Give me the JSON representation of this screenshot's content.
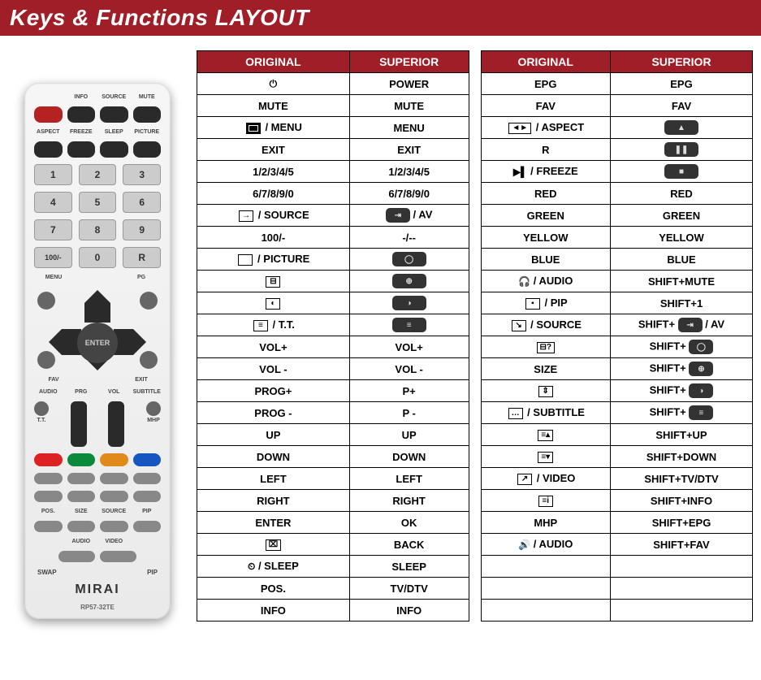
{
  "colors": {
    "accent": "#a01e27",
    "border": "#000000",
    "dark_button": "#333333"
  },
  "header": {
    "title": "Keys & Functions LAYOUT"
  },
  "remote": {
    "brand": "MIRAI",
    "model": "RP57-32TE",
    "top_labels": [
      "",
      "INFO",
      "SOURCE",
      "MUTE"
    ],
    "row2_labels": [
      "ASPECT",
      "FREEZE",
      "SLEEP",
      "PICTURE"
    ],
    "numbers": [
      "1",
      "2",
      "3",
      "4",
      "5",
      "6",
      "7",
      "8",
      "9",
      "100/-",
      "0",
      "R"
    ],
    "menu_label": "MENU",
    "pg_label": "PG",
    "enter_label": "ENTER",
    "fav_label": "FAV",
    "exit_label": "EXIT",
    "rocker_labels": [
      "AUDIO",
      "PRG",
      "VOL",
      "SUBTITLE"
    ],
    "rocker_sub": [
      "T.T.",
      "",
      "",
      "MHP"
    ],
    "bottom1": [
      "POS.",
      "SIZE",
      "SOURCE",
      "PIP"
    ],
    "bottom2": [
      "AUDIO",
      "VIDEO"
    ],
    "swap": "SWAP",
    "pip_section": "PIP"
  },
  "table1": {
    "headers": [
      "ORIGINAL",
      "SUPERIOR"
    ],
    "rows": [
      {
        "o": {
          "type": "sym",
          "text": "⏻"
        },
        "s": {
          "type": "text",
          "text": "POWER"
        }
      },
      {
        "o": {
          "type": "text",
          "text": "MUTE"
        },
        "s": {
          "type": "text",
          "text": "MUTE"
        }
      },
      {
        "o": {
          "type": "icon-text",
          "icon": "black-sq",
          "text": " / MENU"
        },
        "s": {
          "type": "text",
          "text": "MENU"
        }
      },
      {
        "o": {
          "type": "text",
          "text": "EXIT"
        },
        "s": {
          "type": "text",
          "text": "EXIT"
        }
      },
      {
        "o": {
          "type": "text",
          "text": "1/2/3/4/5"
        },
        "s": {
          "type": "text",
          "text": "1/2/3/4/5"
        }
      },
      {
        "o": {
          "type": "text",
          "text": "6/7/8/9/0"
        },
        "s": {
          "type": "text",
          "text": "6/7/8/9/0"
        }
      },
      {
        "o": {
          "type": "icon-text",
          "icon": "source",
          "text": " / SOURCE"
        },
        "s": {
          "type": "dark-text",
          "inner": "⇥",
          "text": " / AV"
        }
      },
      {
        "o": {
          "type": "text",
          "text": "100/-"
        },
        "s": {
          "type": "text",
          "text": "-/--"
        }
      },
      {
        "o": {
          "type": "icon-text",
          "icon": "blank",
          "text": " / PICTURE"
        },
        "s": {
          "type": "dark",
          "inner": "◯"
        }
      },
      {
        "o": {
          "type": "icon",
          "sym": "⊟"
        },
        "s": {
          "type": "dark",
          "inner": "⊕"
        }
      },
      {
        "o": {
          "type": "icon",
          "sym": "◐"
        },
        "s": {
          "type": "dark",
          "inner": "◑"
        }
      },
      {
        "o": {
          "type": "icon-text",
          "icon": "tt",
          "text": " / T.T."
        },
        "s": {
          "type": "dark",
          "inner": "≡"
        }
      },
      {
        "o": {
          "type": "text",
          "text": "VOL+"
        },
        "s": {
          "type": "text",
          "text": "VOL+"
        }
      },
      {
        "o": {
          "type": "text",
          "text": "VOL -"
        },
        "s": {
          "type": "text",
          "text": "VOL -"
        }
      },
      {
        "o": {
          "type": "text",
          "text": "PROG+"
        },
        "s": {
          "type": "text",
          "text": "P+"
        }
      },
      {
        "o": {
          "type": "text",
          "text": "PROG -"
        },
        "s": {
          "type": "text",
          "text": "P -"
        }
      },
      {
        "o": {
          "type": "text",
          "text": "UP"
        },
        "s": {
          "type": "text",
          "text": "UP"
        }
      },
      {
        "o": {
          "type": "text",
          "text": "DOWN"
        },
        "s": {
          "type": "text",
          "text": "DOWN"
        }
      },
      {
        "o": {
          "type": "text",
          "text": "LEFT"
        },
        "s": {
          "type": "text",
          "text": "LEFT"
        }
      },
      {
        "o": {
          "type": "text",
          "text": "RIGHT"
        },
        "s": {
          "type": "text",
          "text": "RIGHT"
        }
      },
      {
        "o": {
          "type": "text",
          "text": "ENTER"
        },
        "s": {
          "type": "text",
          "text": "OK"
        }
      },
      {
        "o": {
          "type": "icon",
          "sym": "⌧"
        },
        "s": {
          "type": "text",
          "text": "BACK"
        }
      },
      {
        "o": {
          "type": "sym-text",
          "sym": "⏲",
          "text": " / SLEEP"
        },
        "s": {
          "type": "text",
          "text": "SLEEP"
        }
      },
      {
        "o": {
          "type": "text",
          "text": "POS."
        },
        "s": {
          "type": "text",
          "text": "TV/DTV"
        }
      },
      {
        "o": {
          "type": "text",
          "text": "INFO"
        },
        "s": {
          "type": "text",
          "text": "INFO"
        }
      }
    ]
  },
  "table2": {
    "headers": [
      "ORIGINAL",
      "SUPERIOR"
    ],
    "rows": [
      {
        "o": {
          "type": "text",
          "text": "EPG"
        },
        "s": {
          "type": "text",
          "text": "EPG"
        }
      },
      {
        "o": {
          "type": "text",
          "text": "FAV"
        },
        "s": {
          "type": "text",
          "text": "FAV"
        }
      },
      {
        "o": {
          "type": "icon-text",
          "icon": "aspect",
          "text": " / ASPECT"
        },
        "s": {
          "type": "dark",
          "inner": "▲"
        }
      },
      {
        "o": {
          "type": "text",
          "text": "R"
        },
        "s": {
          "type": "dark",
          "inner": "❚❚"
        }
      },
      {
        "o": {
          "type": "sym-text",
          "sym": "▶▌",
          "text": " / FREEZE"
        },
        "s": {
          "type": "dark",
          "inner": "■"
        }
      },
      {
        "o": {
          "type": "text",
          "text": "RED"
        },
        "s": {
          "type": "text",
          "text": "RED"
        }
      },
      {
        "o": {
          "type": "text",
          "text": "GREEN"
        },
        "s": {
          "type": "text",
          "text": "GREEN"
        }
      },
      {
        "o": {
          "type": "text",
          "text": "YELLOW"
        },
        "s": {
          "type": "text",
          "text": "YELLOW"
        }
      },
      {
        "o": {
          "type": "text",
          "text": "BLUE"
        },
        "s": {
          "type": "text",
          "text": "BLUE"
        }
      },
      {
        "o": {
          "type": "sym-text",
          "sym": "🎧",
          "text": " / AUDIO"
        },
        "s": {
          "type": "text",
          "text": "SHIFT+MUTE"
        }
      },
      {
        "o": {
          "type": "icon-text",
          "icon": "pip",
          "text": " / PIP"
        },
        "s": {
          "type": "text",
          "text": "SHIFT+1"
        }
      },
      {
        "o": {
          "type": "icon-text",
          "icon": "src2",
          "text": " / SOURCE"
        },
        "s": {
          "type": "shift-dark-text",
          "pre": "SHIFT+ ",
          "inner": "⇥",
          "text": " / AV"
        }
      },
      {
        "o": {
          "type": "icon",
          "sym": "⊟?"
        },
        "s": {
          "type": "shift-dark",
          "pre": "SHIFT+ ",
          "inner": "◯"
        }
      },
      {
        "o": {
          "type": "text",
          "text": "SIZE"
        },
        "s": {
          "type": "shift-dark",
          "pre": "SHIFT+ ",
          "inner": "⊕"
        }
      },
      {
        "o": {
          "type": "icon",
          "sym": "⇕"
        },
        "s": {
          "type": "shift-dark",
          "pre": "SHIFT+ ",
          "inner": "◑"
        }
      },
      {
        "o": {
          "type": "icon-text",
          "icon": "sub",
          "text": " / SUBTITLE"
        },
        "s": {
          "type": "shift-dark",
          "pre": "SHIFT+ ",
          "inner": "≡"
        }
      },
      {
        "o": {
          "type": "icon",
          "sym": "≡▴"
        },
        "s": {
          "type": "text",
          "text": "SHIFT+UP"
        }
      },
      {
        "o": {
          "type": "icon",
          "sym": "≡▾"
        },
        "s": {
          "type": "text",
          "text": "SHIFT+DOWN"
        }
      },
      {
        "o": {
          "type": "icon-text",
          "icon": "vid",
          "text": " / VIDEO"
        },
        "s": {
          "type": "text",
          "text": "SHIFT+TV/DTV"
        }
      },
      {
        "o": {
          "type": "icon",
          "sym": "≡i"
        },
        "s": {
          "type": "text",
          "text": "SHIFT+INFO"
        }
      },
      {
        "o": {
          "type": "text",
          "text": "MHP"
        },
        "s": {
          "type": "text",
          "text": "SHIFT+EPG"
        }
      },
      {
        "o": {
          "type": "sym-text",
          "sym": "🔊",
          "text": " / AUDIO"
        },
        "s": {
          "type": "text",
          "text": "SHIFT+FAV"
        }
      },
      {
        "o": {
          "type": "text",
          "text": ""
        },
        "s": {
          "type": "text",
          "text": ""
        }
      },
      {
        "o": {
          "type": "text",
          "text": ""
        },
        "s": {
          "type": "text",
          "text": ""
        }
      },
      {
        "o": {
          "type": "text",
          "text": ""
        },
        "s": {
          "type": "text",
          "text": ""
        }
      }
    ]
  }
}
